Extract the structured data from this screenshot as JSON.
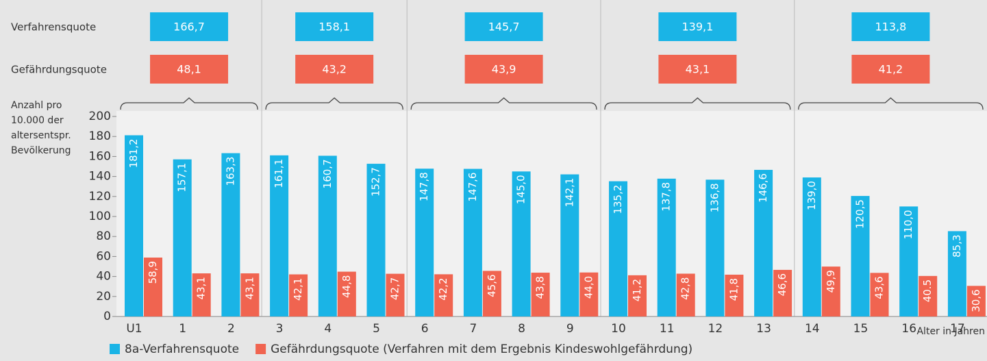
{
  "chart_data": {
    "type": "bar",
    "ylabel": [
      "Anzahl pro",
      "10.000 der",
      "altersentspr.",
      "Bevölkerung"
    ],
    "xlabel": "Alter in Jahren",
    "categories": [
      "U1",
      "1",
      "2",
      "3",
      "4",
      "5",
      "6",
      "7",
      "8",
      "9",
      "10",
      "11",
      "12",
      "13",
      "14",
      "15",
      "16",
      "17"
    ],
    "series": [
      {
        "name": "8a-Verfahrensquote",
        "color": "#1ab4e6",
        "values": [
          181.2,
          157.1,
          163.3,
          161.1,
          160.7,
          152.7,
          147.8,
          147.6,
          145.0,
          142.1,
          135.2,
          137.8,
          136.8,
          146.6,
          139.0,
          120.5,
          110.0,
          85.3
        ],
        "value_labels": [
          "181,2",
          "157,1",
          "163,3",
          "161,1",
          "160,7",
          "152,7",
          "147,8",
          "147,6",
          "145,0",
          "142,1",
          "135,2",
          "137,8",
          "136,8",
          "146,6",
          "139,0",
          "120,5",
          "110,0",
          "85,3"
        ]
      },
      {
        "name": "Gefährdungsquote (Verfahren mit dem Ergebnis Kindeswohlgefährdung)",
        "color": "#f06450",
        "values": [
          58.9,
          43.1,
          43.1,
          42.1,
          44.8,
          42.7,
          42.2,
          45.6,
          43.8,
          44.0,
          41.2,
          42.8,
          41.8,
          46.6,
          49.9,
          43.6,
          40.5,
          30.6
        ],
        "value_labels": [
          "58,9",
          "43,1",
          "43,1",
          "42,1",
          "44,8",
          "42,7",
          "42,2",
          "45,6",
          "43,8",
          "44,0",
          "41,2",
          "42,8",
          "41,8",
          "46,6",
          "49,9",
          "43,6",
          "40.5",
          "30,6"
        ]
      }
    ],
    "group_rows": [
      {
        "name": "Verfahrensquote",
        "color": "#1ab4e6",
        "values": [
          166.7,
          158.1,
          145.7,
          139.1,
          113.8
        ],
        "value_labels": [
          "166,7",
          "158,1",
          "145,7",
          "139,1",
          "113,8"
        ]
      },
      {
        "name": "Gefährdungsquote",
        "color": "#f06450",
        "values": [
          48.1,
          43.2,
          43.9,
          43.1,
          41.2
        ],
        "value_labels": [
          "48,1",
          "43,2",
          "43,9",
          "43,1",
          "41,2"
        ]
      }
    ],
    "ylim": [
      0,
      200
    ],
    "yticks": [
      0,
      20,
      40,
      60,
      80,
      100,
      120,
      140,
      160,
      180,
      200
    ]
  }
}
